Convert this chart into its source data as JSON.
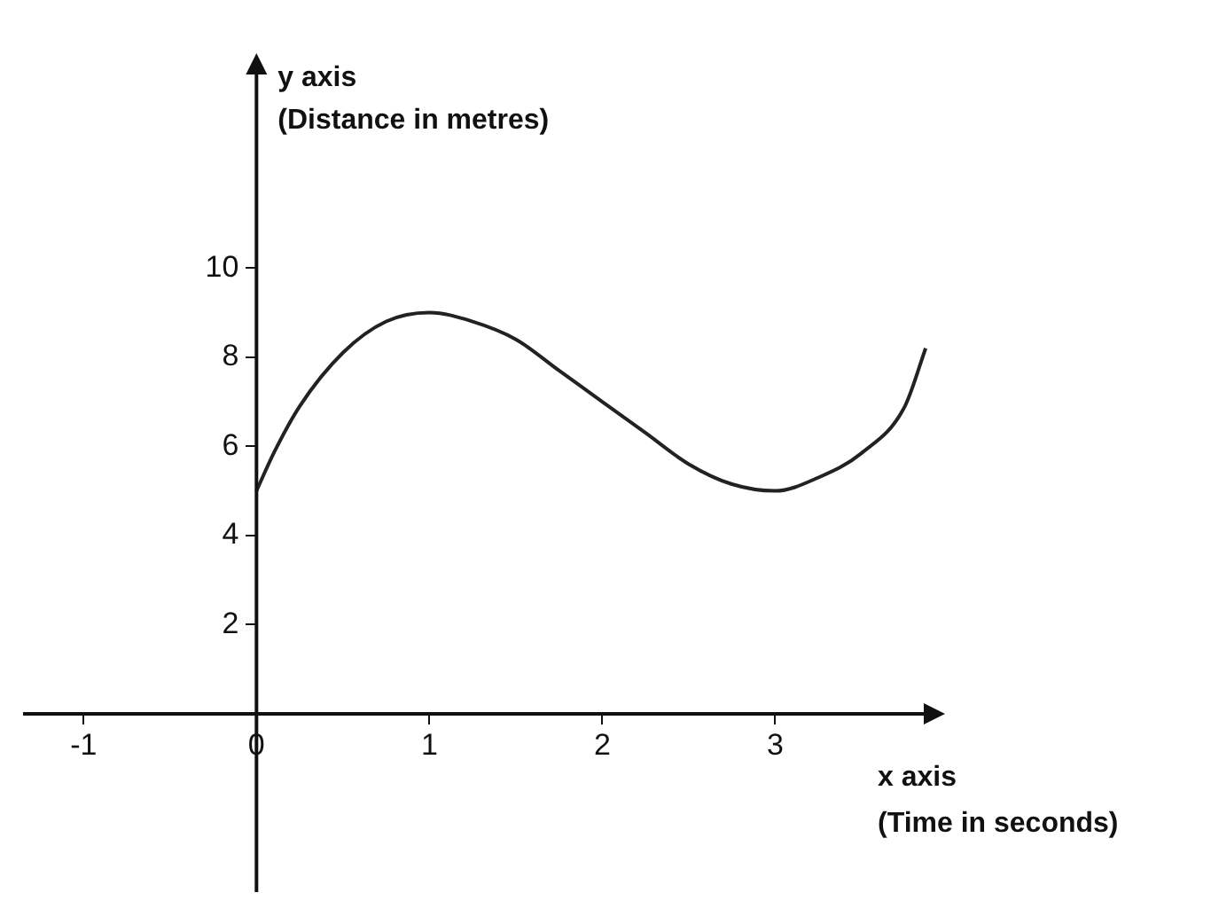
{
  "chart_data": {
    "type": "line",
    "xlabel": "x axis\n(Time in seconds)",
    "ylabel": "y axis\n(Distance in metres)",
    "x": [
      0,
      0.1,
      0.25,
      0.5,
      0.75,
      1,
      1.25,
      1.5,
      1.75,
      2,
      2.25,
      2.5,
      2.75,
      3,
      3.25,
      3.5,
      3.75,
      3.87
    ],
    "series": [
      {
        "color": "#222222",
        "values": [
          5,
          5.85,
          6.9,
          8.1,
          8.8,
          9,
          8.8,
          8.4,
          7.7,
          7,
          6.3,
          5.6,
          5.15,
          5,
          5.3,
          5.85,
          6.9,
          8.2
        ]
      }
    ],
    "xlim": [
      -1.35,
      3.9
    ],
    "ylim": [
      -4,
      14.5
    ],
    "xticks": [
      -1,
      0,
      1,
      2,
      3
    ],
    "yticks": [
      2,
      4,
      6,
      8,
      10
    ],
    "legend": false,
    "grid": false
  }
}
